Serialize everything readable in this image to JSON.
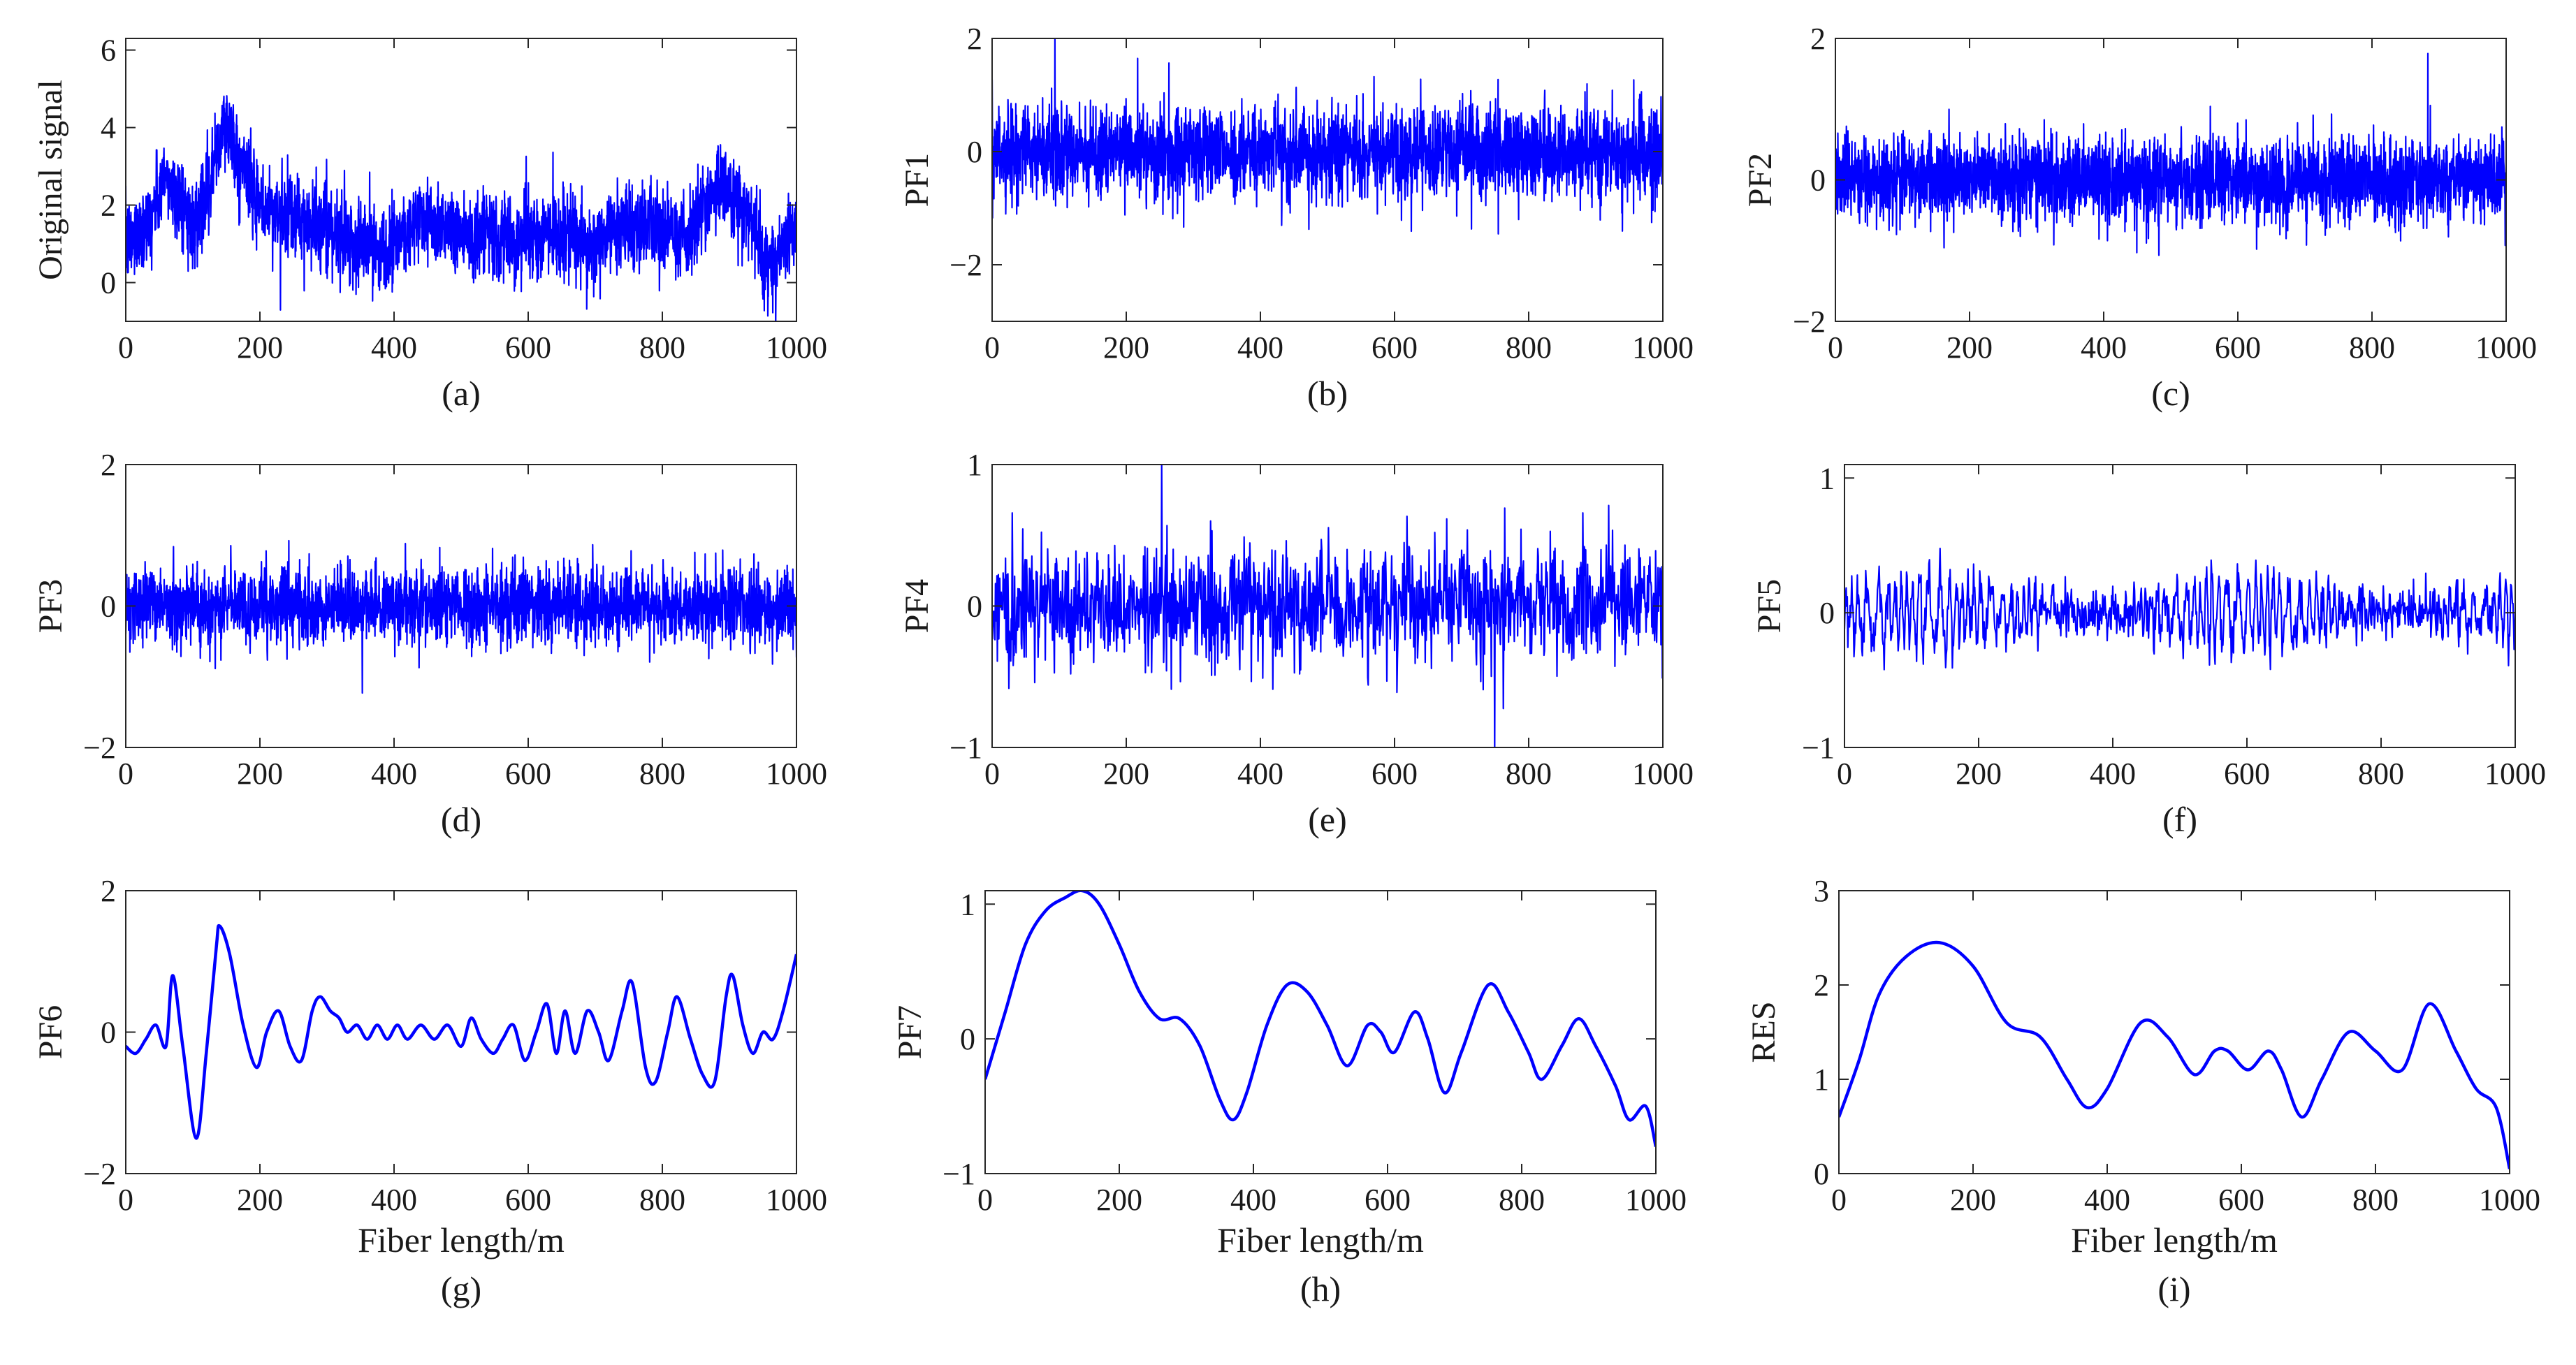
{
  "figure": {
    "line_color": "#0000ff"
  },
  "chart_data": [
    {
      "type": "line",
      "id": "a",
      "caption": "(a)",
      "ylabel": "Original signal",
      "xlabel": "",
      "xlim": [
        0,
        1000
      ],
      "ylim": [
        -1,
        6.3
      ],
      "xticks": [
        0,
        200,
        400,
        600,
        800,
        1000
      ],
      "xtick_labels": [
        "0",
        "200",
        "400",
        "600",
        "800",
        "1000"
      ],
      "yticks": [
        0,
        2,
        4,
        6
      ],
      "ytick_labels": [
        "0",
        "2",
        "4",
        "6"
      ],
      "series": [
        {
          "name": "Original signal",
          "trend": [
            [
              0,
              1.0
            ],
            [
              30,
              1.5
            ],
            [
              60,
              2.6
            ],
            [
              80,
              2.2
            ],
            [
              100,
              1.5
            ],
            [
              120,
              2.5
            ],
            [
              150,
              4.0
            ],
            [
              175,
              3.0
            ],
            [
              200,
              1.9
            ],
            [
              260,
              1.6
            ],
            [
              300,
              1.3
            ],
            [
              370,
              0.9
            ],
            [
              450,
              1.6
            ],
            [
              530,
              1.2
            ],
            [
              580,
              1.1
            ],
            [
              640,
              1.3
            ],
            [
              690,
              0.9
            ],
            [
              750,
              1.5
            ],
            [
              790,
              1.4
            ],
            [
              830,
              1.1
            ],
            [
              890,
              2.5
            ],
            [
              920,
              1.9
            ],
            [
              960,
              0.6
            ],
            [
              1000,
              1.3
            ]
          ],
          "noise_amplitude": 0.9,
          "noise_type": "random",
          "samples": 3000
        }
      ]
    },
    {
      "type": "line",
      "id": "b",
      "caption": "(b)",
      "ylabel": "PF1",
      "xlabel": "",
      "xlim": [
        0,
        1000
      ],
      "ylim": [
        -3,
        2
      ],
      "xticks": [
        0,
        200,
        400,
        600,
        800,
        1000
      ],
      "xtick_labels": [
        "0",
        "200",
        "400",
        "600",
        "800",
        "1000"
      ],
      "yticks": [
        -2,
        0,
        2
      ],
      "ytick_labels": [
        "−2",
        "0",
        "2"
      ],
      "series": [
        {
          "name": "PF1",
          "trend": [
            [
              0,
              0
            ],
            [
              1000,
              0
            ]
          ],
          "noise_amplitude": 0.65,
          "noise_type": "random",
          "samples": 3000
        }
      ]
    },
    {
      "type": "line",
      "id": "c",
      "caption": "(c)",
      "ylabel": "PF2",
      "xlabel": "",
      "xlim": [
        0,
        1000
      ],
      "ylim": [
        -2,
        2
      ],
      "xticks": [
        0,
        200,
        400,
        600,
        800,
        1000
      ],
      "xtick_labels": [
        "0",
        "200",
        "400",
        "600",
        "800",
        "1000"
      ],
      "yticks": [
        -2,
        0,
        2
      ],
      "ytick_labels": [
        "−2",
        "0",
        "2"
      ],
      "series": [
        {
          "name": "PF2",
          "trend": [
            [
              0,
              0
            ],
            [
              1000,
              0
            ]
          ],
          "noise_amplitude": 0.5,
          "noise_type": "random",
          "samples": 3000
        }
      ]
    },
    {
      "type": "line",
      "id": "d",
      "caption": "(d)",
      "ylabel": "PF3",
      "xlabel": "",
      "xlim": [
        0,
        1000
      ],
      "ylim": [
        -2,
        2
      ],
      "xticks": [
        0,
        200,
        400,
        600,
        800,
        1000
      ],
      "xtick_labels": [
        "0",
        "200",
        "400",
        "600",
        "800",
        "1000"
      ],
      "yticks": [
        -2,
        0,
        2
      ],
      "ytick_labels": [
        "−2",
        "0",
        "2"
      ],
      "series": [
        {
          "name": "PF3",
          "trend": [
            [
              0,
              0
            ],
            [
              1000,
              0
            ]
          ],
          "noise_amplitude": 0.45,
          "noise_type": "random",
          "samples": 2600
        }
      ]
    },
    {
      "type": "line",
      "id": "e",
      "caption": "(e)",
      "ylabel": "PF4",
      "xlabel": "",
      "xlim": [
        0,
        1000
      ],
      "ylim": [
        -1,
        1
      ],
      "xticks": [
        0,
        200,
        400,
        600,
        800,
        1000
      ],
      "xtick_labels": [
        "0",
        "200",
        "400",
        "600",
        "800",
        "1000"
      ],
      "yticks": [
        -1,
        0,
        1
      ],
      "ytick_labels": [
        "−1",
        "0",
        "1"
      ],
      "series": [
        {
          "name": "PF4",
          "trend": [
            [
              0,
              0
            ],
            [
              1000,
              0
            ]
          ],
          "noise_amplitude": 0.35,
          "noise_type": "random",
          "samples": 1400
        }
      ]
    },
    {
      "type": "line",
      "id": "f",
      "caption": "(f)",
      "ylabel": "PF5",
      "xlabel": "",
      "xlim": [
        0,
        1000
      ],
      "ylim": [
        -1,
        1.1
      ],
      "xticks": [
        0,
        200,
        400,
        600,
        800,
        1000
      ],
      "xtick_labels": [
        "0",
        "200",
        "400",
        "600",
        "800",
        "1000"
      ],
      "yticks": [
        -1,
        0,
        1
      ],
      "ytick_labels": [
        "−1",
        "0",
        "1"
      ],
      "series": [
        {
          "name": "PF5",
          "trend": [
            [
              0,
              0
            ],
            [
              1000,
              0
            ]
          ],
          "noise_amplitude": 0.25,
          "noise_type": "oscillation",
          "samples": 1200
        }
      ]
    },
    {
      "type": "line",
      "id": "g",
      "caption": "(g)",
      "ylabel": "PF6",
      "xlabel": "Fiber length/m",
      "xlim": [
        0,
        1000
      ],
      "ylim": [
        -2,
        2
      ],
      "xticks": [
        0,
        200,
        400,
        600,
        800,
        1000
      ],
      "xtick_labels": [
        "0",
        "200",
        "400",
        "600",
        "800",
        "1000"
      ],
      "yticks": [
        -2,
        0,
        2
      ],
      "ytick_labels": [
        "−2",
        "0",
        "2"
      ],
      "series": [
        {
          "name": "PF6",
          "points": [
            [
              0,
              -0.2
            ],
            [
              15,
              -0.3
            ],
            [
              30,
              -0.1
            ],
            [
              45,
              0.1
            ],
            [
              60,
              -0.2
            ],
            [
              70,
              0.8
            ],
            [
              85,
              -0.2
            ],
            [
              105,
              -1.5
            ],
            [
              120,
              -0.3
            ],
            [
              135,
              1.2
            ],
            [
              140,
              1.5
            ],
            [
              155,
              1.1
            ],
            [
              175,
              0.1
            ],
            [
              195,
              -0.5
            ],
            [
              210,
              0.0
            ],
            [
              228,
              0.3
            ],
            [
              245,
              -0.2
            ],
            [
              262,
              -0.4
            ],
            [
              278,
              0.3
            ],
            [
              290,
              0.5
            ],
            [
              305,
              0.3
            ],
            [
              318,
              0.2
            ],
            [
              330,
              0.0
            ],
            [
              345,
              0.1
            ],
            [
              360,
              -0.1
            ],
            [
              375,
              0.1
            ],
            [
              390,
              -0.1
            ],
            [
              405,
              0.1
            ],
            [
              420,
              -0.1
            ],
            [
              440,
              0.1
            ],
            [
              460,
              -0.1
            ],
            [
              480,
              0.1
            ],
            [
              500,
              -0.2
            ],
            [
              515,
              0.2
            ],
            [
              530,
              -0.1
            ],
            [
              548,
              -0.3
            ],
            [
              562,
              -0.1
            ],
            [
              578,
              0.1
            ],
            [
              595,
              -0.4
            ],
            [
              612,
              0.0
            ],
            [
              628,
              0.4
            ],
            [
              642,
              -0.3
            ],
            [
              655,
              0.3
            ],
            [
              670,
              -0.3
            ],
            [
              688,
              0.3
            ],
            [
              705,
              0.0
            ],
            [
              720,
              -0.4
            ],
            [
              740,
              0.3
            ],
            [
              755,
              0.7
            ],
            [
              775,
              -0.5
            ],
            [
              790,
              -0.7
            ],
            [
              808,
              0.0
            ],
            [
              822,
              0.5
            ],
            [
              842,
              -0.1
            ],
            [
              860,
              -0.6
            ],
            [
              878,
              -0.7
            ],
            [
              895,
              0.5
            ],
            [
              905,
              0.8
            ],
            [
              920,
              0.1
            ],
            [
              935,
              -0.3
            ],
            [
              950,
              0.0
            ],
            [
              965,
              -0.1
            ],
            [
              980,
              0.3
            ],
            [
              1000,
              1.1
            ]
          ]
        }
      ]
    },
    {
      "type": "line",
      "id": "h",
      "caption": "(h)",
      "ylabel": "PF7",
      "xlabel": "Fiber length/m",
      "xlim": [
        0,
        1000
      ],
      "ylim": [
        -1,
        1.1
      ],
      "xticks": [
        0,
        200,
        400,
        600,
        800,
        1000
      ],
      "xtick_labels": [
        "0",
        "200",
        "400",
        "600",
        "800",
        "1000"
      ],
      "yticks": [
        -1,
        0,
        1
      ],
      "ytick_labels": [
        "−1",
        "0",
        "1"
      ],
      "series": [
        {
          "name": "PF7",
          "points": [
            [
              0,
              -0.3
            ],
            [
              30,
              0.2
            ],
            [
              60,
              0.7
            ],
            [
              90,
              0.95
            ],
            [
              120,
              1.05
            ],
            [
              145,
              1.1
            ],
            [
              170,
              1.0
            ],
            [
              200,
              0.7
            ],
            [
              230,
              0.35
            ],
            [
              260,
              0.15
            ],
            [
              290,
              0.15
            ],
            [
              320,
              -0.05
            ],
            [
              350,
              -0.45
            ],
            [
              370,
              -0.6
            ],
            [
              390,
              -0.4
            ],
            [
              420,
              0.1
            ],
            [
              450,
              0.4
            ],
            [
              480,
              0.35
            ],
            [
              510,
              0.1
            ],
            [
              540,
              -0.2
            ],
            [
              570,
              0.1
            ],
            [
              590,
              0.05
            ],
            [
              610,
              -0.1
            ],
            [
              640,
              0.2
            ],
            [
              660,
              0.0
            ],
            [
              685,
              -0.4
            ],
            [
              710,
              -0.1
            ],
            [
              750,
              0.4
            ],
            [
              780,
              0.2
            ],
            [
              810,
              -0.1
            ],
            [
              830,
              -0.3
            ],
            [
              860,
              -0.05
            ],
            [
              885,
              0.15
            ],
            [
              910,
              -0.05
            ],
            [
              940,
              -0.35
            ],
            [
              960,
              -0.6
            ],
            [
              985,
              -0.5
            ],
            [
              1000,
              -0.8
            ]
          ]
        }
      ]
    },
    {
      "type": "line",
      "id": "i",
      "caption": "(i)",
      "ylabel": "RES",
      "xlabel": "Fiber length/m",
      "xlim": [
        0,
        1000
      ],
      "ylim": [
        0,
        3
      ],
      "xticks": [
        0,
        200,
        400,
        600,
        800,
        1000
      ],
      "xtick_labels": [
        "0",
        "200",
        "400",
        "600",
        "800",
        "1000"
      ],
      "yticks": [
        0,
        1,
        2,
        3
      ],
      "ytick_labels": [
        "0",
        "1",
        "2",
        "3"
      ],
      "series": [
        {
          "name": "RES",
          "points": [
            [
              0,
              0.6
            ],
            [
              30,
              1.2
            ],
            [
              60,
              1.9
            ],
            [
              100,
              2.3
            ],
            [
              150,
              2.45
            ],
            [
              200,
              2.2
            ],
            [
              250,
              1.6
            ],
            [
              300,
              1.45
            ],
            [
              340,
              1.0
            ],
            [
              370,
              0.7
            ],
            [
              400,
              0.9
            ],
            [
              450,
              1.6
            ],
            [
              490,
              1.45
            ],
            [
              530,
              1.05
            ],
            [
              560,
              1.3
            ],
            [
              580,
              1.3
            ],
            [
              610,
              1.1
            ],
            [
              640,
              1.3
            ],
            [
              660,
              1.1
            ],
            [
              690,
              0.6
            ],
            [
              720,
              1.0
            ],
            [
              760,
              1.5
            ],
            [
              800,
              1.3
            ],
            [
              840,
              1.1
            ],
            [
              880,
              1.8
            ],
            [
              920,
              1.3
            ],
            [
              950,
              0.9
            ],
            [
              980,
              0.7
            ],
            [
              1000,
              0.05
            ]
          ]
        }
      ]
    }
  ]
}
